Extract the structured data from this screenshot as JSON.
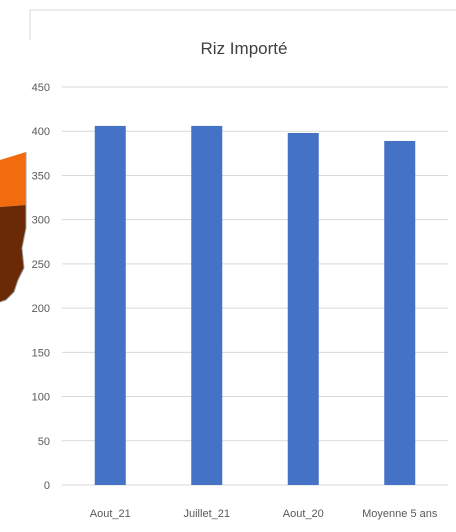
{
  "chart_data": {
    "type": "bar",
    "title": "Riz Importé",
    "categories": [
      "Aout_21",
      "Juillet_21",
      "Aout_20",
      "Moyenne 5 ans"
    ],
    "values": [
      406,
      406,
      398,
      389
    ],
    "ylim": [
      0,
      450
    ],
    "yticks": [
      0,
      50,
      100,
      150,
      200,
      250,
      300,
      350,
      400,
      450
    ],
    "xlabel": "",
    "ylabel": "",
    "grid": true,
    "legend": "none",
    "colors": {
      "bar": "#4472C4",
      "grid": "#D9D9D9",
      "text": "#595959"
    }
  },
  "decoration": {
    "colors": {
      "orange": "#F26B0F",
      "brown": "#6B2A06",
      "outline": "#A0A0A0"
    }
  }
}
